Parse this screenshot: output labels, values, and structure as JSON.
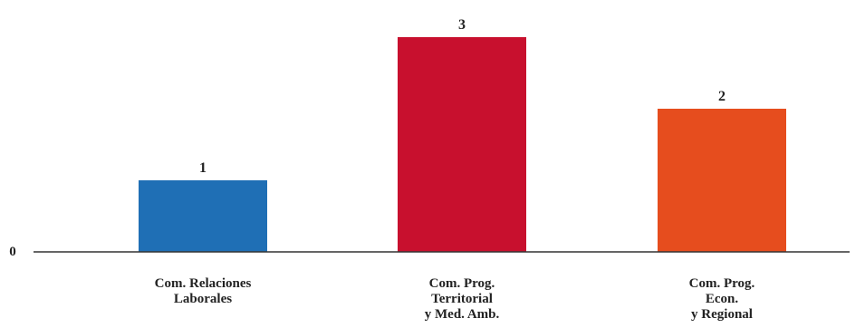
{
  "chart_data": {
    "type": "bar",
    "categories": [
      [
        "Com. Relaciones",
        "Laborales"
      ],
      [
        "Com. Prog.",
        "Territorial",
        "y Med. Amb."
      ],
      [
        "Com. Prog.",
        "Econ.",
        "y Regional"
      ]
    ],
    "values": [
      1,
      3,
      2
    ],
    "colors": [
      "#1f6fb5",
      "#c8102e",
      "#e64d1e"
    ],
    "baseline_label": "0",
    "ylim": [
      0,
      3
    ],
    "grid": false,
    "legend": false,
    "title": "",
    "xlabel": "",
    "ylabel": ""
  }
}
